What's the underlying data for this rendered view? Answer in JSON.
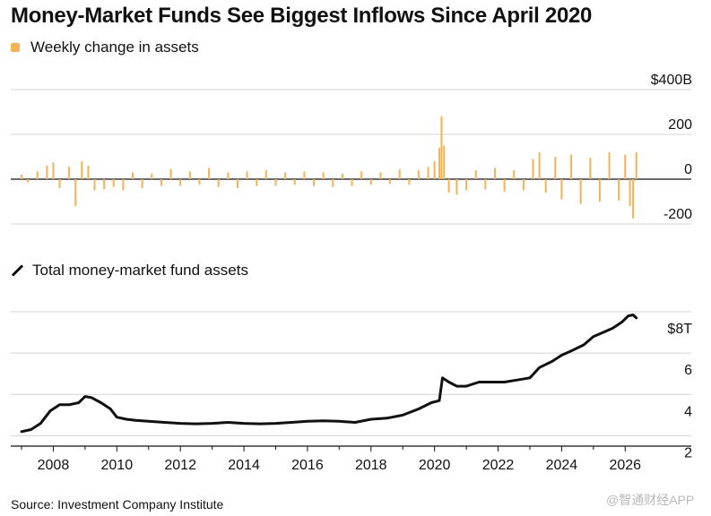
{
  "title": "Money-Market Funds See Biggest Inflows Since April 2020",
  "source": "Source: Investment Company Institute",
  "watermark": "@智通财经APP",
  "colors": {
    "weekly": "#f2b357",
    "total": "#111111",
    "grid": "#d4d4d4",
    "axis": "#111111"
  },
  "chart_data": [
    {
      "type": "bar",
      "legend": "Weekly change in assets",
      "y_unit_top": "$400B",
      "ylim": [
        -200,
        400
      ],
      "yticks": [
        {
          "value": 400,
          "label": "$400B"
        },
        {
          "value": 200,
          "label": "200"
        },
        {
          "value": 0,
          "label": "0"
        },
        {
          "value": -200,
          "label": "-200"
        }
      ],
      "xlim": [
        2007.0,
        2026.5
      ],
      "series": [
        {
          "x": 2007.0,
          "y": 20
        },
        {
          "x": 2007.2,
          "y": -15
        },
        {
          "x": 2007.5,
          "y": 35
        },
        {
          "x": 2007.8,
          "y": 60
        },
        {
          "x": 2008.0,
          "y": 75
        },
        {
          "x": 2008.2,
          "y": -40
        },
        {
          "x": 2008.5,
          "y": 55
        },
        {
          "x": 2008.7,
          "y": -120
        },
        {
          "x": 2008.9,
          "y": 80
        },
        {
          "x": 2009.1,
          "y": 60
        },
        {
          "x": 2009.3,
          "y": -50
        },
        {
          "x": 2009.6,
          "y": -45
        },
        {
          "x": 2009.9,
          "y": -35
        },
        {
          "x": 2010.2,
          "y": -50
        },
        {
          "x": 2010.5,
          "y": 30
        },
        {
          "x": 2010.8,
          "y": -40
        },
        {
          "x": 2011.1,
          "y": 25
        },
        {
          "x": 2011.4,
          "y": -30
        },
        {
          "x": 2011.7,
          "y": 45
        },
        {
          "x": 2012.0,
          "y": -30
        },
        {
          "x": 2012.3,
          "y": 35
        },
        {
          "x": 2012.6,
          "y": -25
        },
        {
          "x": 2012.9,
          "y": 50
        },
        {
          "x": 2013.2,
          "y": -35
        },
        {
          "x": 2013.5,
          "y": 30
        },
        {
          "x": 2013.8,
          "y": -40
        },
        {
          "x": 2014.1,
          "y": 35
        },
        {
          "x": 2014.4,
          "y": -30
        },
        {
          "x": 2014.7,
          "y": 40
        },
        {
          "x": 2015.0,
          "y": -30
        },
        {
          "x": 2015.3,
          "y": 30
        },
        {
          "x": 2015.6,
          "y": -25
        },
        {
          "x": 2015.9,
          "y": 35
        },
        {
          "x": 2016.2,
          "y": -30
        },
        {
          "x": 2016.5,
          "y": 30
        },
        {
          "x": 2016.8,
          "y": -35
        },
        {
          "x": 2017.1,
          "y": 25
        },
        {
          "x": 2017.4,
          "y": -30
        },
        {
          "x": 2017.7,
          "y": 35
        },
        {
          "x": 2018.0,
          "y": -25
        },
        {
          "x": 2018.3,
          "y": 30
        },
        {
          "x": 2018.6,
          "y": -20
        },
        {
          "x": 2018.9,
          "y": 45
        },
        {
          "x": 2019.2,
          "y": -25
        },
        {
          "x": 2019.5,
          "y": 40
        },
        {
          "x": 2019.8,
          "y": 55
        },
        {
          "x": 2020.0,
          "y": 80
        },
        {
          "x": 2020.15,
          "y": 140
        },
        {
          "x": 2020.22,
          "y": 280
        },
        {
          "x": 2020.3,
          "y": 150
        },
        {
          "x": 2020.45,
          "y": -60
        },
        {
          "x": 2020.7,
          "y": -70
        },
        {
          "x": 2021.0,
          "y": -50
        },
        {
          "x": 2021.3,
          "y": 40
        },
        {
          "x": 2021.6,
          "y": -45
        },
        {
          "x": 2021.9,
          "y": 50
        },
        {
          "x": 2022.2,
          "y": -55
        },
        {
          "x": 2022.5,
          "y": 40
        },
        {
          "x": 2022.8,
          "y": -50
        },
        {
          "x": 2023.1,
          "y": 90
        },
        {
          "x": 2023.3,
          "y": 120
        },
        {
          "x": 2023.5,
          "y": -60
        },
        {
          "x": 2023.8,
          "y": 100
        },
        {
          "x": 2024.0,
          "y": -90
        },
        {
          "x": 2024.3,
          "y": 110
        },
        {
          "x": 2024.6,
          "y": -110
        },
        {
          "x": 2024.9,
          "y": 95
        },
        {
          "x": 2025.2,
          "y": -100
        },
        {
          "x": 2025.5,
          "y": 120
        },
        {
          "x": 2025.8,
          "y": -95
        },
        {
          "x": 2026.0,
          "y": 110
        },
        {
          "x": 2026.15,
          "y": -120
        },
        {
          "x": 2026.25,
          "y": -175
        },
        {
          "x": 2026.35,
          "y": 120
        }
      ]
    },
    {
      "type": "line",
      "legend": "Total money-market fund assets",
      "ylim": [
        1.5,
        8
      ],
      "yticks": [
        {
          "value": 8,
          "label": "$8T"
        },
        {
          "value": 6,
          "label": "6"
        },
        {
          "value": 4,
          "label": "4"
        },
        {
          "value": 2,
          "label": "2"
        }
      ],
      "xlim": [
        2007.0,
        2026.5
      ],
      "xticks": [
        {
          "value": 2008,
          "label": "2008"
        },
        {
          "value": 2010,
          "label": "2010"
        },
        {
          "value": 2012,
          "label": "2012"
        },
        {
          "value": 2014,
          "label": "2014"
        },
        {
          "value": 2016,
          "label": "2016"
        },
        {
          "value": 2018,
          "label": "2018"
        },
        {
          "value": 2020,
          "label": "2020"
        },
        {
          "value": 2022,
          "label": "2022"
        },
        {
          "value": 2024,
          "label": "2024"
        },
        {
          "value": 2026,
          "label": "2026"
        }
      ],
      "x": [
        2007.0,
        2007.3,
        2007.6,
        2007.9,
        2008.2,
        2008.5,
        2008.8,
        2009.0,
        2009.2,
        2009.5,
        2009.8,
        2010.0,
        2010.3,
        2010.6,
        2011.0,
        2011.5,
        2012.0,
        2012.5,
        2013.0,
        2013.5,
        2014.0,
        2014.5,
        2015.0,
        2015.5,
        2016.0,
        2016.5,
        2017.0,
        2017.5,
        2018.0,
        2018.5,
        2019.0,
        2019.5,
        2019.9,
        2020.15,
        2020.25,
        2020.45,
        2020.7,
        2021.0,
        2021.4,
        2021.8,
        2022.2,
        2022.6,
        2023.0,
        2023.3,
        2023.7,
        2024.0,
        2024.3,
        2024.7,
        2025.0,
        2025.3,
        2025.6,
        2025.9,
        2026.1,
        2026.25,
        2026.35
      ],
      "y": [
        2.2,
        2.3,
        2.6,
        3.2,
        3.5,
        3.5,
        3.6,
        3.9,
        3.85,
        3.6,
        3.3,
        2.9,
        2.8,
        2.75,
        2.7,
        2.65,
        2.6,
        2.58,
        2.6,
        2.65,
        2.6,
        2.58,
        2.6,
        2.65,
        2.7,
        2.72,
        2.7,
        2.65,
        2.8,
        2.85,
        3.0,
        3.3,
        3.6,
        3.7,
        4.8,
        4.6,
        4.4,
        4.4,
        4.6,
        4.6,
        4.6,
        4.7,
        4.8,
        5.3,
        5.6,
        5.9,
        6.1,
        6.4,
        6.8,
        7.0,
        7.2,
        7.5,
        7.8,
        7.85,
        7.7
      ]
    }
  ]
}
